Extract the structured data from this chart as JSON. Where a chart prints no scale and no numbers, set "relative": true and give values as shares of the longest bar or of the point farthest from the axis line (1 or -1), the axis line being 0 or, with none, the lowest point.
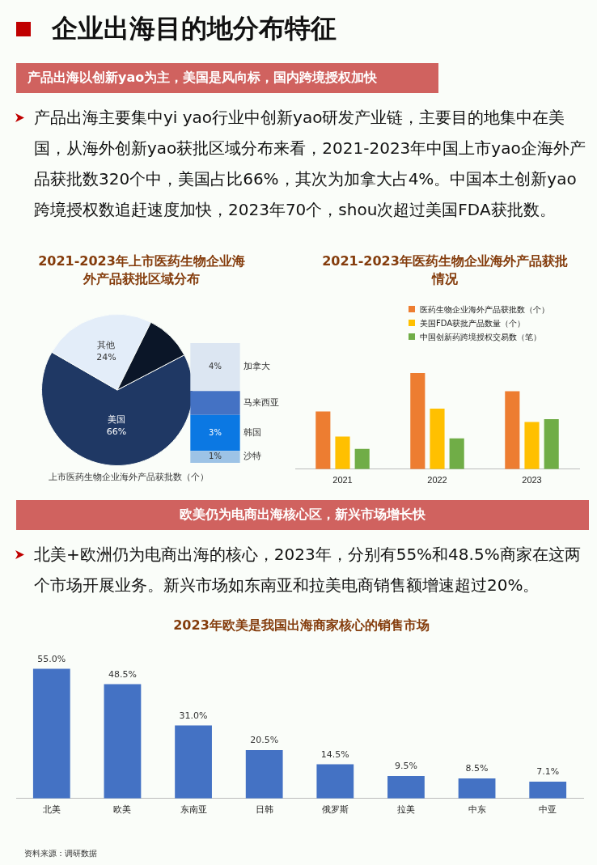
{
  "chart_data": [
    {
      "type": "pie",
      "title": "2021-2023年上市医药生物企业海外产品获批区域分布",
      "xlabel": "上市医药生物企业海外产品获批数（个）",
      "categories": [
        "美国",
        "其他",
        null
      ],
      "values": [
        66,
        24,
        10
      ],
      "colors": [
        "#1f3864",
        "#e3edf9",
        "#0b1628"
      ],
      "value_labels": [
        "66%",
        "24%",
        null
      ],
      "annotations": [
        "企业出海目的地分布特征",
        "产品出海以创新yao为主，美国是风向标，国内跨境授权加快",
        "产品出海主要集中yi yao行业中创新yao研发产业链，主要目的地集中在美国，从海外创新yao获批区域分布来看，2021-2023年中国上市yao企海外产品获批数320个中，美国占比66%，其次为加拿大占4%。中国本土创新yao跨境授权数追赶速度加快，2023年70个，shou次超过美国FDA获批数。"
      ]
    },
    {
      "type": "bar",
      "stacked": true,
      "tick_labels": false,
      "categories": [
        null
      ],
      "series": [
        {
          "name": "沙特",
          "color": "#9dc3e6",
          "values": [
            1
          ],
          "value_labels": [
            "1%"
          ]
        },
        {
          "name": "韩国",
          "color": "#0b78e3",
          "values": [
            3
          ],
          "value_labels": [
            "3%"
          ]
        },
        {
          "name": "马来西亚",
          "color": "#4472c4",
          "values": [
            2
          ],
          "value_labels": [
            null
          ]
        },
        {
          "name": "加拿大",
          "color": "#dce6f2",
          "values": [
            4
          ],
          "value_labels": [
            "4%"
          ]
        }
      ]
    },
    {
      "type": "bar",
      "relative": true,
      "title": "2021-2023年医药生物企业海外产品获批情况",
      "legend": "top",
      "categories": [
        "2021",
        "2022",
        "2023"
      ],
      "series": [
        {
          "name": "医药生物企业海外产品获批数（个）",
          "color": "#ed7d31",
          "values": [
            0.6,
            1,
            0.81
          ]
        },
        {
          "name": "美国FDA获批产品数量（个）",
          "color": "#ffc000",
          "values": [
            0.34,
            0.63,
            0.49
          ]
        },
        {
          "name": "中国创新药跨境授权交易数（笔）",
          "color": "#70ad47",
          "values": [
            0.21,
            0.32,
            0.52
          ]
        }
      ]
    },
    {
      "type": "bar",
      "tick_labels": "x",
      "title": "2023年欧美是我国出海商家核心的销售市场",
      "categories": [
        "北美",
        "欧美",
        "东南亚",
        "日韩",
        "俄罗斯",
        "拉美",
        "中东",
        "中亚"
      ],
      "values": [
        55,
        48.5,
        31,
        20.5,
        14.5,
        9.5,
        8.5,
        7.1
      ],
      "color": "#4472c4",
      "value_labels": [
        "55.0%",
        "48.5%",
        "31.0%",
        "20.5%",
        "14.5%",
        "9.5%",
        "8.5%",
        "7.1%"
      ],
      "annotations": [
        "欧美仍为电商出海核心区，新兴市场增长快",
        "北美+欧洲仍为电商出海的核心，2023年，分别有55%和48.5%商家在这两个市场开展业务。新兴市场如东南亚和拉美电商销售额增速超过20%。",
        "资料来源：调研数据"
      ]
    }
  ]
}
